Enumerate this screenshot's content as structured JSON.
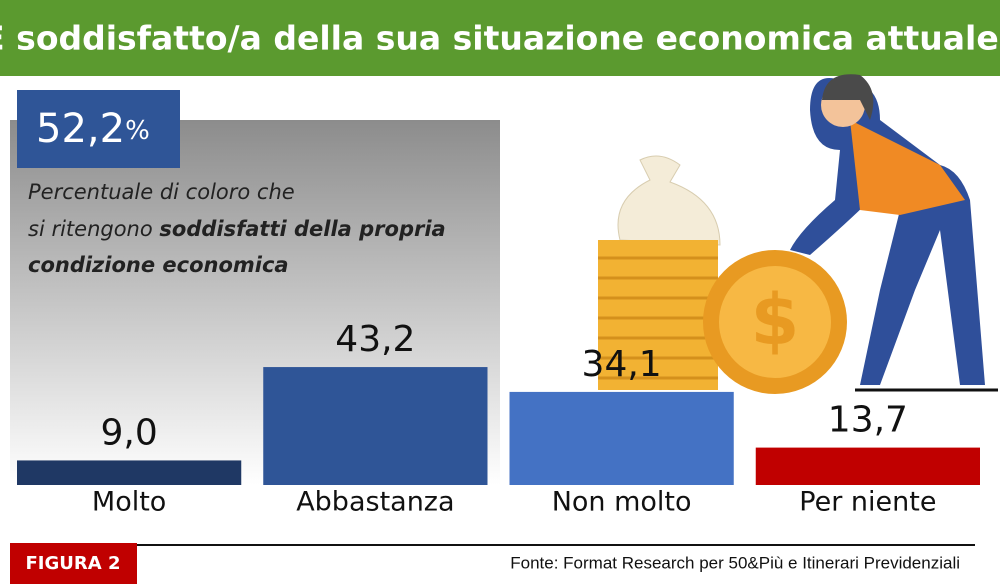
{
  "chart_data": {
    "type": "bar",
    "title": "È soddisfatto/a della sua situazione economica attuale?",
    "headline_value": "52,2",
    "headline_unit": "%",
    "description": [
      "Percentuale di coloro che",
      "si ritengono"
    ],
    "description_bold": [
      "soddisfatti della propria",
      "condizione economica"
    ],
    "categories": [
      "Molto",
      "Abbastanza",
      "Non molto",
      "Per niente"
    ],
    "values": [
      9.0,
      43.2,
      34.1,
      13.7
    ],
    "value_labels": [
      "9,0",
      "43,2",
      "34,1",
      "13,7"
    ],
    "colors": [
      "#1f3864",
      "#2f5597",
      "#4472c4",
      "#c00000"
    ],
    "ylim": [
      0,
      100
    ],
    "figure_label": "FIGURA 2",
    "source": "Fonte: Format Research per 50&Più e Itinerari Previdenziali"
  }
}
